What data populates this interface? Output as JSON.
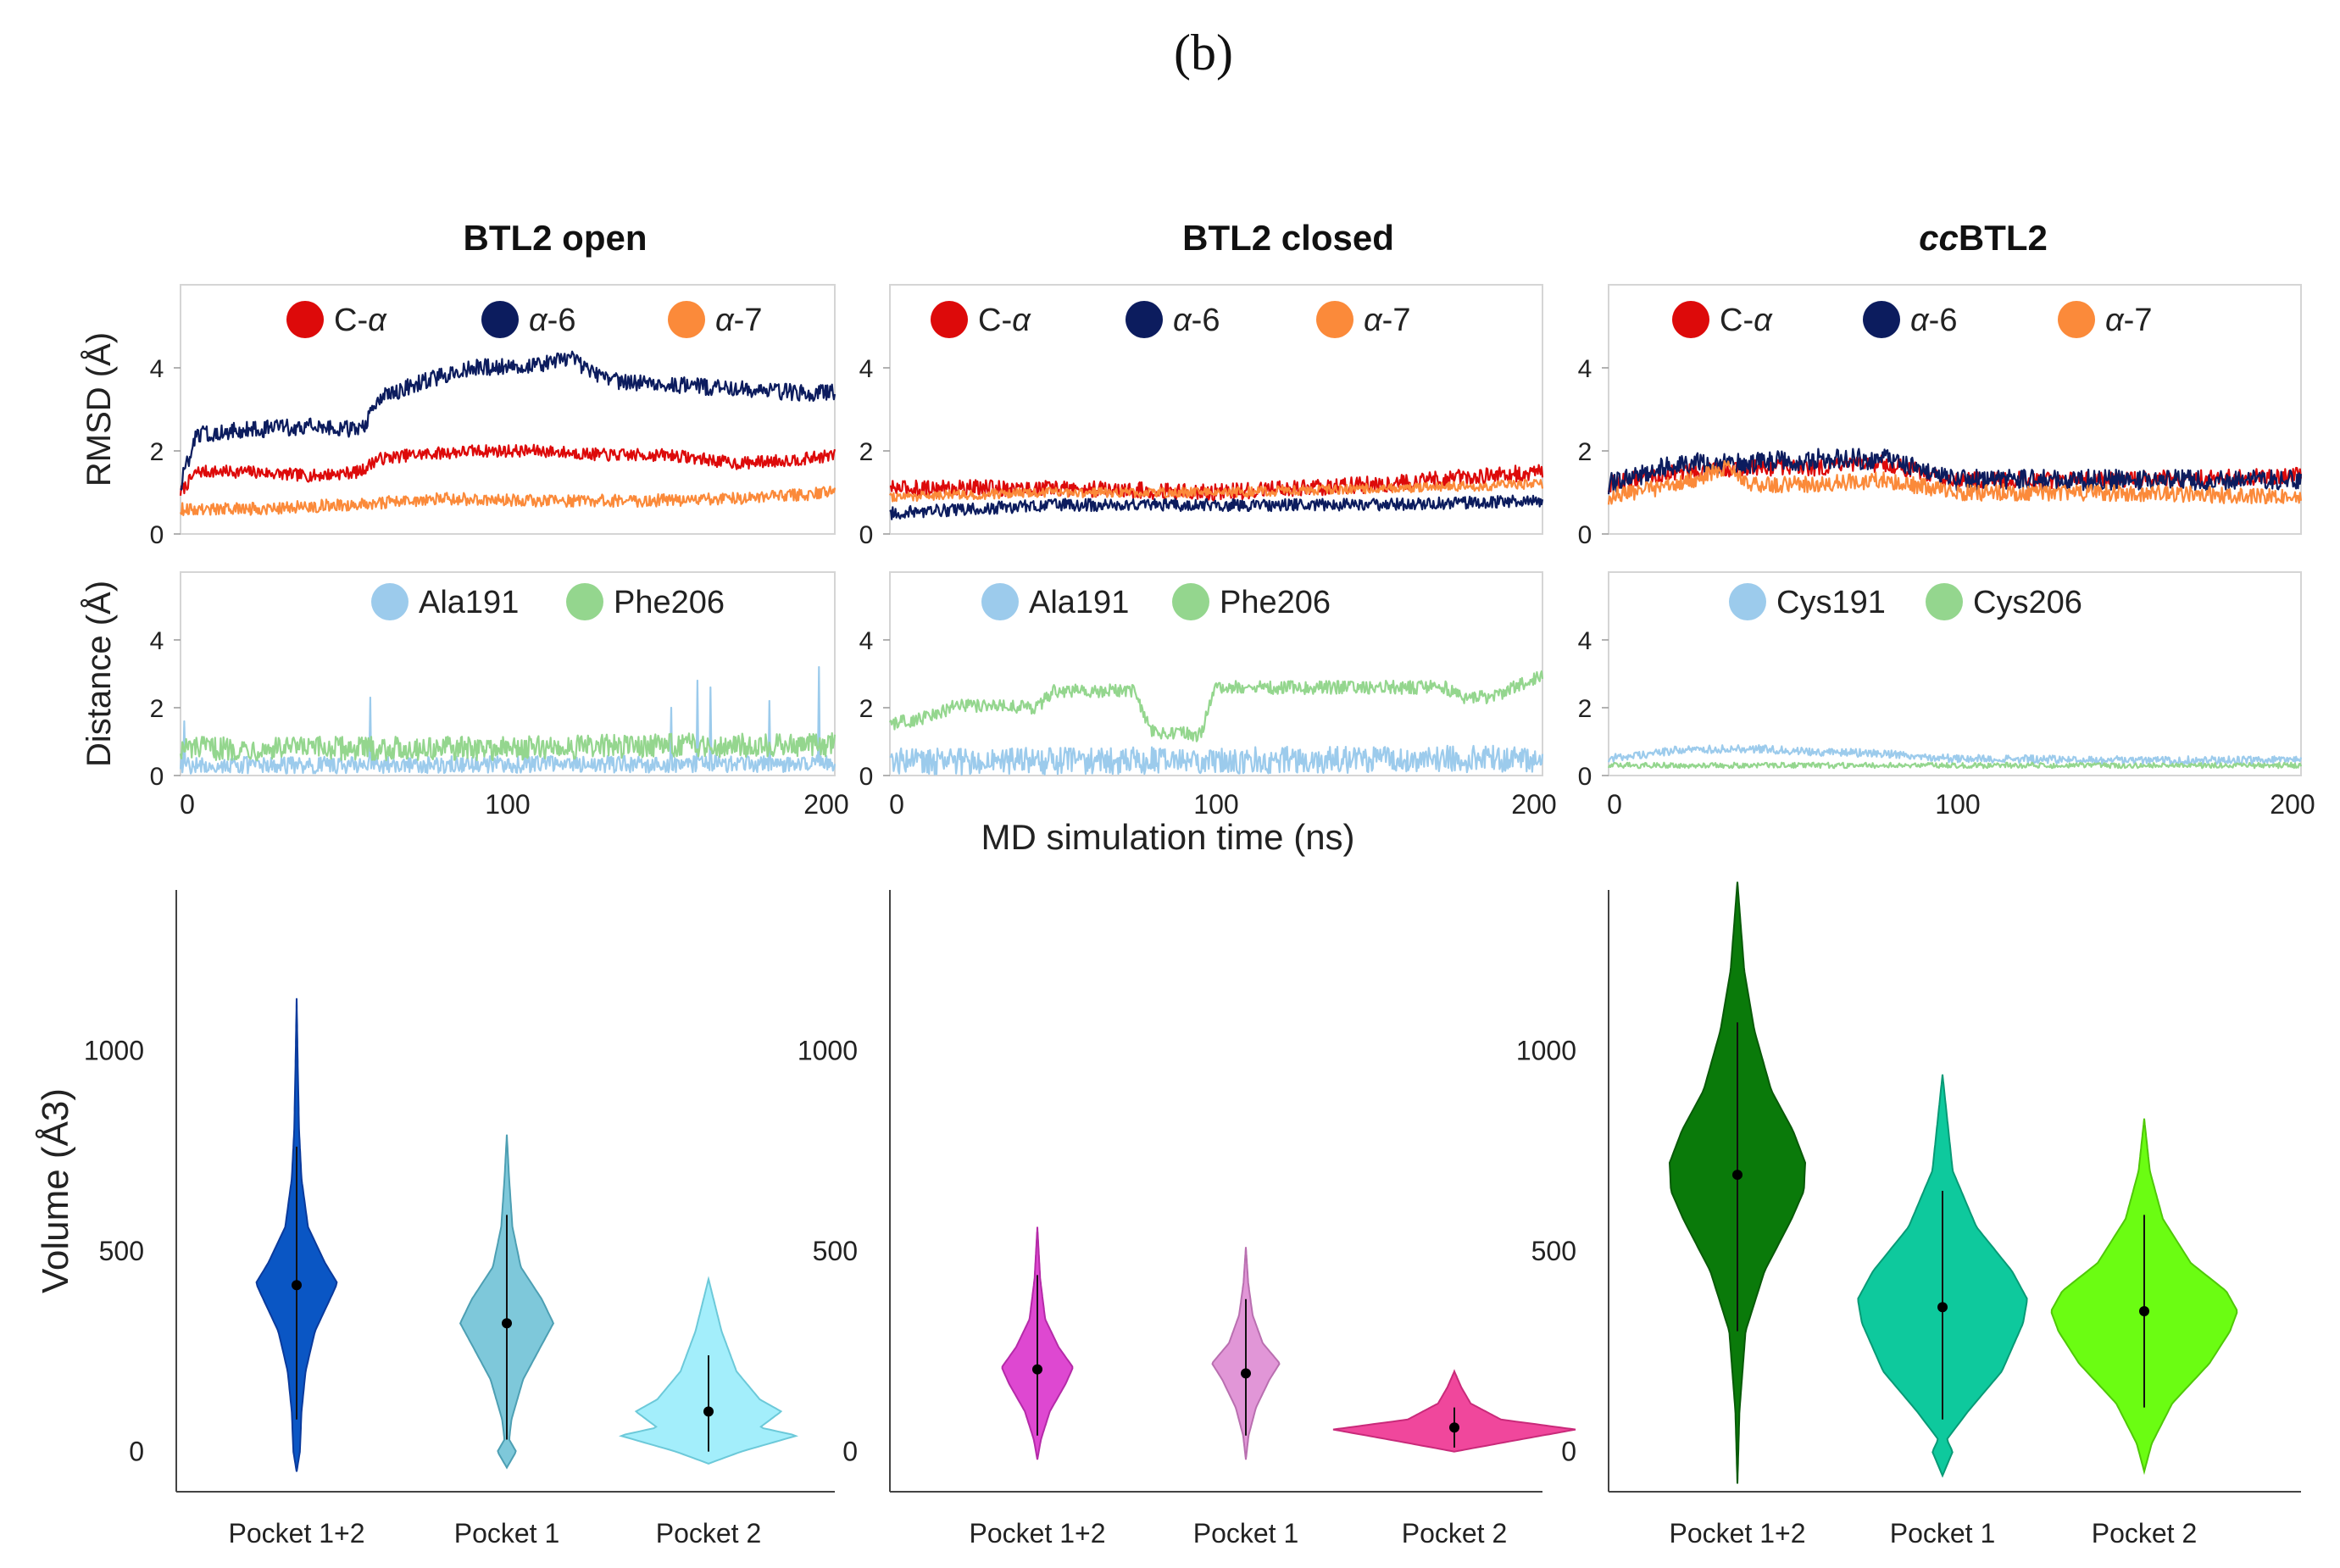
{
  "figure_label": "(b)",
  "shared_xlabel": "MD simulation time (ns)",
  "colors": {
    "c_alpha": "#dd0a0a",
    "alpha6": "#0c1c5e",
    "alpha7": "#fb8a3a",
    "res1": "#9ccbec",
    "res2": "#94d68e"
  },
  "chart_data": [
    {
      "id": "btl2-open",
      "title": "BTL2 open",
      "title_parts": [
        {
          "text": "BTL2 open",
          "italic": false
        }
      ],
      "rmsd": {
        "type": "line",
        "ylabel": "RMSD (Å)",
        "ylim": [
          0,
          6
        ],
        "xlim": [
          0,
          200
        ],
        "yticks": [
          "0",
          "2",
          "4"
        ],
        "legend": [
          "C-α",
          "α-6",
          "α-7"
        ],
        "series": [
          {
            "name": "C-α",
            "color": "#dd0a0a",
            "x": [
              0,
              5,
              20,
              40,
              55,
              60,
              70,
              90,
              110,
              130,
              150,
              170,
              190,
              200
            ],
            "y": [
              1.0,
              1.5,
              1.5,
              1.4,
              1.5,
              1.8,
              1.9,
              2.0,
              2.0,
              1.9,
              1.9,
              1.7,
              1.8,
              1.9
            ],
            "noise": 0.15
          },
          {
            "name": "α-6",
            "color": "#0c1c5e",
            "x": [
              0,
              5,
              20,
              40,
              55,
              62,
              75,
              90,
              110,
              120,
              130,
              150,
              170,
              190,
              200
            ],
            "y": [
              1.2,
              2.4,
              2.5,
              2.6,
              2.5,
              3.3,
              3.7,
              4.0,
              4.1,
              4.2,
              3.7,
              3.6,
              3.5,
              3.4,
              3.4
            ],
            "noise": 0.2
          },
          {
            "name": "α-7",
            "color": "#fb8a3a",
            "x": [
              0,
              20,
              50,
              80,
              110,
              140,
              170,
              200
            ],
            "y": [
              0.6,
              0.6,
              0.7,
              0.85,
              0.8,
              0.8,
              0.85,
              1.0
            ],
            "noise": 0.15
          }
        ]
      },
      "distance": {
        "type": "line",
        "ylabel": "Distance (Å)",
        "ylim": [
          0,
          6
        ],
        "xlim": [
          0,
          200
        ],
        "yticks": [
          "0",
          "2",
          "4"
        ],
        "xticks": [
          "0",
          "100",
          "200"
        ],
        "legend": [
          "Ala191",
          "Phe206"
        ],
        "series": [
          {
            "name": "Ala191",
            "color": "#9ccbec",
            "x": [
              0,
              200
            ],
            "y": [
              0.3,
              0.35
            ],
            "noise": 0.25,
            "spikes": [
              [
                1,
                1.6
              ],
              [
                58,
                2.3
              ],
              [
                150,
                2.0
              ],
              [
                158,
                2.8
              ],
              [
                162,
                2.6
              ],
              [
                180,
                2.2
              ],
              [
                195,
                3.2
              ]
            ]
          },
          {
            "name": "Phe206",
            "color": "#94d68e",
            "x": [
              0,
              50,
              100,
              150,
              200
            ],
            "y": [
              0.8,
              0.8,
              0.8,
              0.9,
              0.9
            ],
            "noise": 0.35
          }
        ]
      },
      "violin": {
        "type": "violin",
        "ylabel": "Volume (Å3)",
        "ylim": [
          -100,
          1400
        ],
        "yticks": [
          "0",
          "500",
          "1000"
        ],
        "categories": [
          "Pocket 1+2",
          "Pocket 1",
          "Pocket 2"
        ],
        "colors": [
          "#0a56c4",
          "#7ec8da",
          "#a3eefb"
        ],
        "edge_colors": [
          "#0a3a9c",
          "#4d9fb3",
          "#6cc9d9"
        ],
        "median": [
          415,
          320,
          100
        ],
        "range": [
          [
            -50,
            1130
          ],
          [
            -40,
            790
          ],
          [
            -30,
            430
          ]
        ],
        "iqr": [
          [
            80,
            760
          ],
          [
            30,
            590
          ],
          [
            0,
            240
          ]
        ],
        "density": [
          [
            [
              -50,
              0.0
            ],
            [
              0,
              0.08
            ],
            [
              100,
              0.12
            ],
            [
              200,
              0.22
            ],
            [
              300,
              0.45
            ],
            [
              380,
              0.82
            ],
            [
              420,
              1.0
            ],
            [
              470,
              0.7
            ],
            [
              560,
              0.28
            ],
            [
              680,
              0.12
            ],
            [
              800,
              0.06
            ],
            [
              950,
              0.03
            ],
            [
              1130,
              0.0
            ]
          ],
          [
            [
              -40,
              0.0
            ],
            [
              0,
              0.2
            ],
            [
              30,
              0.05
            ],
            [
              80,
              0.1
            ],
            [
              180,
              0.35
            ],
            [
              260,
              0.72
            ],
            [
              320,
              1.0
            ],
            [
              380,
              0.75
            ],
            [
              460,
              0.3
            ],
            [
              560,
              0.12
            ],
            [
              680,
              0.05
            ],
            [
              790,
              0.0
            ]
          ],
          [
            [
              -30,
              0.0
            ],
            [
              0,
              0.35
            ],
            [
              40,
              0.95
            ],
            [
              60,
              0.55
            ],
            [
              100,
              0.78
            ],
            [
              130,
              0.55
            ],
            [
              200,
              0.3
            ],
            [
              300,
              0.14
            ],
            [
              430,
              0.0
            ]
          ]
        ]
      }
    },
    {
      "id": "btl2-closed",
      "title": "BTL2 closed",
      "title_parts": [
        {
          "text": "BTL2 closed",
          "italic": false
        }
      ],
      "rmsd": {
        "type": "line",
        "ylabel": "",
        "ylim": [
          0,
          6
        ],
        "xlim": [
          0,
          200
        ],
        "yticks": [
          "0",
          "2",
          "4"
        ],
        "legend": [
          "C-α",
          "α-6",
          "α-7"
        ],
        "series": [
          {
            "name": "C-α",
            "color": "#dd0a0a",
            "x": [
              0,
              50,
              100,
              150,
              200
            ],
            "y": [
              1.1,
              1.1,
              1.0,
              1.2,
              1.5
            ],
            "noise": 0.2
          },
          {
            "name": "α-6",
            "color": "#0c1c5e",
            "x": [
              0,
              50,
              100,
              150,
              200
            ],
            "y": [
              0.5,
              0.7,
              0.7,
              0.7,
              0.8
            ],
            "noise": 0.15
          },
          {
            "name": "α-7",
            "color": "#fb8a3a",
            "x": [
              0,
              50,
              100,
              150,
              200
            ],
            "y": [
              0.9,
              1.0,
              1.0,
              1.1,
              1.2
            ],
            "noise": 0.12
          }
        ]
      },
      "distance": {
        "type": "line",
        "ylabel": "",
        "ylim": [
          0,
          6
        ],
        "xlim": [
          0,
          200
        ],
        "yticks": [
          "0",
          "2",
          "4"
        ],
        "xticks": [
          "0",
          "100",
          "200"
        ],
        "legend": [
          "Ala191",
          "Phe206"
        ],
        "series": [
          {
            "name": "Ala191",
            "color": "#9ccbec",
            "x": [
              0,
              200
            ],
            "y": [
              0.4,
              0.5
            ],
            "noise": 0.4
          },
          {
            "name": "Phe206",
            "color": "#94d68e",
            "x": [
              0,
              15,
              20,
              45,
              50,
              75,
              80,
              95,
              100,
              170,
              175,
              185,
              200
            ],
            "y": [
              1.5,
              1.8,
              2.1,
              2.0,
              2.5,
              2.5,
              1.3,
              1.2,
              2.6,
              2.6,
              2.3,
              2.3,
              3.0
            ],
            "noise": 0.2
          }
        ]
      },
      "violin": {
        "type": "violin",
        "ylabel": "",
        "ylim": [
          -100,
          1400
        ],
        "yticks": [
          "0",
          "500",
          "1000"
        ],
        "categories": [
          "Pocket 1+2",
          "Pocket 1",
          "Pocket 2"
        ],
        "colors": [
          "#de48d1",
          "#e196d7",
          "#f0479c"
        ],
        "edge_colors": [
          "#b52aa8",
          "#b96fb0",
          "#c92a7a"
        ],
        "median": [
          205,
          195,
          60
        ],
        "range": [
          [
            -20,
            560
          ],
          [
            -20,
            510
          ],
          [
            0,
            200
          ]
        ],
        "iqr": [
          [
            40,
            440
          ],
          [
            40,
            380
          ],
          [
            10,
            110
          ]
        ],
        "density": [
          [
            [
              -20,
              0.0
            ],
            [
              30,
              0.1
            ],
            [
              100,
              0.35
            ],
            [
              170,
              0.8
            ],
            [
              210,
              1.0
            ],
            [
              260,
              0.6
            ],
            [
              330,
              0.22
            ],
            [
              430,
              0.08
            ],
            [
              560,
              0.0
            ]
          ],
          [
            [
              -20,
              0.0
            ],
            [
              40,
              0.08
            ],
            [
              110,
              0.3
            ],
            [
              180,
              0.7
            ],
            [
              220,
              1.0
            ],
            [
              270,
              0.5
            ],
            [
              340,
              0.2
            ],
            [
              420,
              0.07
            ],
            [
              510,
              0.0
            ]
          ],
          [
            [
              0,
              0.0
            ],
            [
              30,
              1.4
            ],
            [
              55,
              2.6
            ],
            [
              80,
              1.0
            ],
            [
              120,
              0.35
            ],
            [
              160,
              0.15
            ],
            [
              200,
              0.0
            ]
          ]
        ]
      }
    },
    {
      "id": "ccbtl2",
      "title": "ccBTL2",
      "title_parts": [
        {
          "text": "cc",
          "italic": true
        },
        {
          "text": "BTL2",
          "italic": false
        }
      ],
      "rmsd": {
        "type": "line",
        "ylabel": "",
        "ylim": [
          0,
          6
        ],
        "xlim": [
          0,
          200
        ],
        "yticks": [
          "0",
          "2",
          "4"
        ],
        "legend": [
          "C-α",
          "α-6",
          "α-7"
        ],
        "series": [
          {
            "name": "C-α",
            "color": "#dd0a0a",
            "x": [
              0,
              20,
              40,
              60,
              80,
              100,
              140,
              200
            ],
            "y": [
              1.2,
              1.5,
              1.6,
              1.6,
              1.7,
              1.3,
              1.3,
              1.4
            ],
            "noise": 0.2
          },
          {
            "name": "α-6",
            "color": "#0c1c5e",
            "x": [
              0,
              20,
              40,
              60,
              80,
              100,
              140,
              200
            ],
            "y": [
              1.2,
              1.7,
              1.7,
              1.8,
              1.8,
              1.3,
              1.3,
              1.3
            ],
            "noise": 0.25
          },
          {
            "name": "α-7",
            "color": "#fb8a3a",
            "x": [
              0,
              20,
              35,
              40,
              60,
              80,
              100,
              140,
              200
            ],
            "y": [
              0.9,
              1.2,
              1.6,
              1.2,
              1.2,
              1.3,
              1.0,
              1.0,
              0.9
            ],
            "noise": 0.2
          }
        ]
      },
      "distance": {
        "type": "line",
        "ylabel": "",
        "ylim": [
          0,
          6
        ],
        "xlim": [
          0,
          200
        ],
        "yticks": [
          "0",
          "2",
          "4"
        ],
        "xticks": [
          "0",
          "100",
          "200"
        ],
        "legend": [
          "Cys191",
          "Cys206"
        ],
        "series": [
          {
            "name": "Cys191",
            "color": "#9ccbec",
            "x": [
              0,
              20,
              40,
              60,
              80,
              100,
              150,
              200
            ],
            "y": [
              0.5,
              0.75,
              0.8,
              0.7,
              0.65,
              0.5,
              0.45,
              0.45
            ],
            "noise": 0.12
          },
          {
            "name": "Cys206",
            "color": "#94d68e",
            "x": [
              0,
              200
            ],
            "y": [
              0.3,
              0.3
            ],
            "noise": 0.08
          }
        ]
      },
      "violin": {
        "type": "violin",
        "ylabel": "",
        "ylim": [
          -100,
          1400
        ],
        "yticks": [
          "0",
          "500",
          "1000"
        ],
        "categories": [
          "Pocket 1+2",
          "Pocket 1",
          "Pocket 2"
        ],
        "colors": [
          "#0a7a0a",
          "#0ec99d",
          "#6bfd12"
        ],
        "edge_colors": [
          "#085a08",
          "#089a76",
          "#4fc808"
        ],
        "median": [
          690,
          360,
          350
        ],
        "range": [
          [
            -80,
            1420
          ],
          [
            -60,
            940
          ],
          [
            -50,
            830
          ]
        ],
        "iqr": [
          [
            300,
            1070
          ],
          [
            80,
            650
          ],
          [
            110,
            590
          ]
        ],
        "density": [
          [
            [
              -80,
              0.0
            ],
            [
              100,
              0.03
            ],
            [
              300,
              0.12
            ],
            [
              450,
              0.4
            ],
            [
              580,
              0.8
            ],
            [
              650,
              0.98
            ],
            [
              720,
              1.0
            ],
            [
              800,
              0.82
            ],
            [
              900,
              0.5
            ],
            [
              1050,
              0.25
            ],
            [
              1200,
              0.1
            ],
            [
              1420,
              0.0
            ]
          ],
          [
            [
              -60,
              0.0
            ],
            [
              0,
              0.12
            ],
            [
              30,
              0.05
            ],
            [
              100,
              0.3
            ],
            [
              200,
              0.7
            ],
            [
              320,
              0.95
            ],
            [
              380,
              1.0
            ],
            [
              450,
              0.82
            ],
            [
              560,
              0.4
            ],
            [
              700,
              0.12
            ],
            [
              940,
              0.0
            ]
          ],
          [
            [
              -50,
              0.0
            ],
            [
              20,
              0.08
            ],
            [
              120,
              0.3
            ],
            [
              220,
              0.7
            ],
            [
              300,
              0.92
            ],
            [
              350,
              1.0
            ],
            [
              400,
              0.88
            ],
            [
              470,
              0.5
            ],
            [
              580,
              0.2
            ],
            [
              700,
              0.06
            ],
            [
              830,
              0.0
            ]
          ]
        ]
      }
    }
  ]
}
